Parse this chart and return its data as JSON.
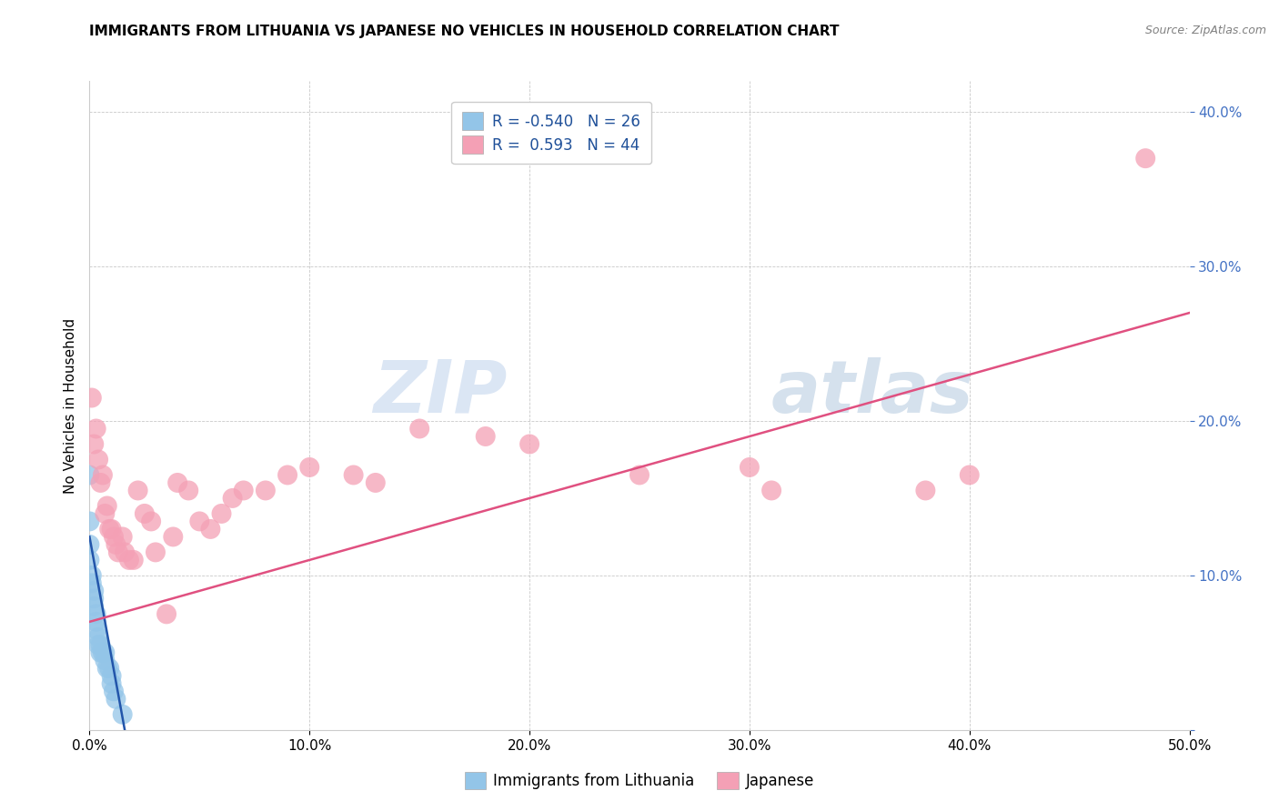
{
  "title": "IMMIGRANTS FROM LITHUANIA VS JAPANESE NO VEHICLES IN HOUSEHOLD CORRELATION CHART",
  "source": "Source: ZipAtlas.com",
  "ylabel": "No Vehicles in Household",
  "xlim": [
    0.0,
    0.5
  ],
  "ylim": [
    0.0,
    0.42
  ],
  "xticks": [
    0.0,
    0.1,
    0.2,
    0.3,
    0.4,
    0.5
  ],
  "yticks": [
    0.0,
    0.1,
    0.2,
    0.3,
    0.4
  ],
  "color_blue": "#93C5E8",
  "color_pink": "#F4A0B5",
  "line_color_blue": "#2255AA",
  "line_color_pink": "#E05080",
  "watermark_zip": "ZIP",
  "watermark_atlas": "atlas",
  "scatter_blue": [
    [
      0.0,
      0.165
    ],
    [
      0.0,
      0.135
    ],
    [
      0.0,
      0.12
    ],
    [
      0.0,
      0.11
    ],
    [
      0.001,
      0.1
    ],
    [
      0.001,
      0.095
    ],
    [
      0.002,
      0.09
    ],
    [
      0.002,
      0.085
    ],
    [
      0.002,
      0.08
    ],
    [
      0.003,
      0.075
    ],
    [
      0.003,
      0.07
    ],
    [
      0.003,
      0.065
    ],
    [
      0.004,
      0.06
    ],
    [
      0.004,
      0.055
    ],
    [
      0.005,
      0.055
    ],
    [
      0.005,
      0.05
    ],
    [
      0.006,
      0.05
    ],
    [
      0.007,
      0.05
    ],
    [
      0.007,
      0.045
    ],
    [
      0.008,
      0.04
    ],
    [
      0.009,
      0.04
    ],
    [
      0.01,
      0.035
    ],
    [
      0.01,
      0.03
    ],
    [
      0.011,
      0.025
    ],
    [
      0.012,
      0.02
    ],
    [
      0.015,
      0.01
    ]
  ],
  "scatter_pink": [
    [
      0.001,
      0.215
    ],
    [
      0.002,
      0.185
    ],
    [
      0.003,
      0.195
    ],
    [
      0.004,
      0.175
    ],
    [
      0.005,
      0.16
    ],
    [
      0.006,
      0.165
    ],
    [
      0.007,
      0.14
    ],
    [
      0.008,
      0.145
    ],
    [
      0.009,
      0.13
    ],
    [
      0.01,
      0.13
    ],
    [
      0.011,
      0.125
    ],
    [
      0.012,
      0.12
    ],
    [
      0.013,
      0.115
    ],
    [
      0.015,
      0.125
    ],
    [
      0.016,
      0.115
    ],
    [
      0.018,
      0.11
    ],
    [
      0.02,
      0.11
    ],
    [
      0.022,
      0.155
    ],
    [
      0.025,
      0.14
    ],
    [
      0.028,
      0.135
    ],
    [
      0.03,
      0.115
    ],
    [
      0.035,
      0.075
    ],
    [
      0.038,
      0.125
    ],
    [
      0.04,
      0.16
    ],
    [
      0.045,
      0.155
    ],
    [
      0.05,
      0.135
    ],
    [
      0.055,
      0.13
    ],
    [
      0.06,
      0.14
    ],
    [
      0.065,
      0.15
    ],
    [
      0.07,
      0.155
    ],
    [
      0.08,
      0.155
    ],
    [
      0.09,
      0.165
    ],
    [
      0.1,
      0.17
    ],
    [
      0.12,
      0.165
    ],
    [
      0.13,
      0.16
    ],
    [
      0.15,
      0.195
    ],
    [
      0.18,
      0.19
    ],
    [
      0.2,
      0.185
    ],
    [
      0.25,
      0.165
    ],
    [
      0.3,
      0.17
    ],
    [
      0.31,
      0.155
    ],
    [
      0.38,
      0.155
    ],
    [
      0.4,
      0.165
    ],
    [
      0.48,
      0.37
    ]
  ],
  "blue_line_x": [
    0.0,
    0.016
  ],
  "blue_line_y": [
    0.125,
    0.0
  ],
  "pink_line_x": [
    0.0,
    0.5
  ],
  "pink_line_y": [
    0.07,
    0.27
  ],
  "legend_items": [
    {
      "label": "R = -0.540   N = 26",
      "color": "#93C5E8"
    },
    {
      "label": "R =  0.593   N = 44",
      "color": "#F4A0B5"
    }
  ],
  "bottom_legend": [
    "Immigrants from Lithuania",
    "Japanese"
  ],
  "title_fontsize": 11,
  "axis_label_fontsize": 11,
  "tick_fontsize": 11,
  "legend_fontsize": 12,
  "source_fontsize": 9
}
